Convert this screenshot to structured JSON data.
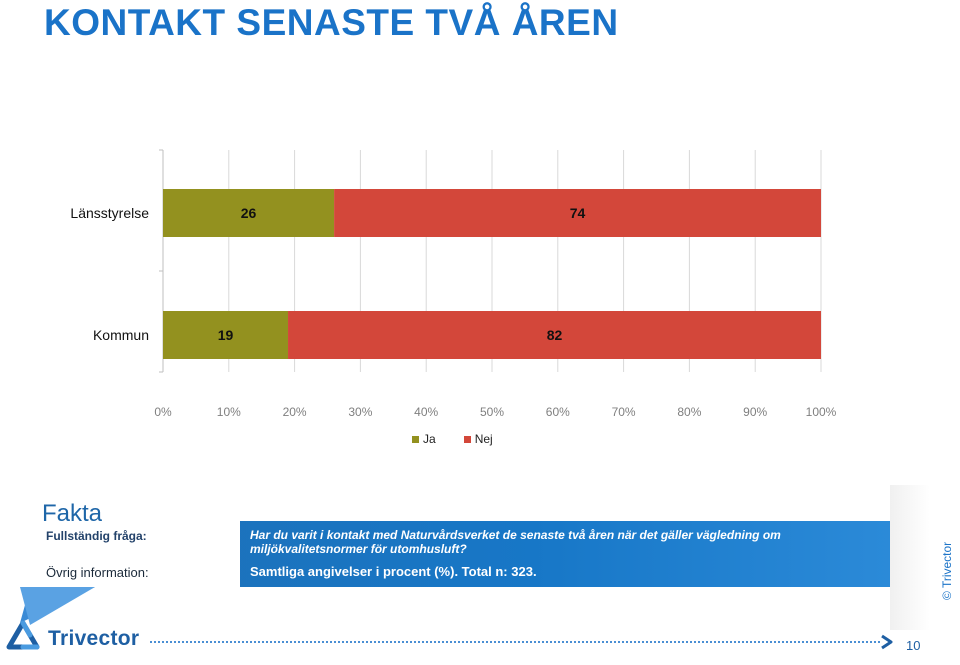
{
  "page": {
    "title": "KONTAKT SENASTE TVÅ ÅREN",
    "page_number": "10",
    "copyright": "© Trivector",
    "logo_text": "Trivector"
  },
  "chart_data": {
    "type": "bar",
    "orientation": "horizontal",
    "stacked": true,
    "categories": [
      "Länsstyrelse",
      "Kommun"
    ],
    "series": [
      {
        "name": "Ja",
        "values": [
          26,
          19
        ],
        "color": "#93911f"
      },
      {
        "name": "Nej",
        "values": [
          74,
          82
        ],
        "color": "#d3473a"
      }
    ],
    "x_ticks": [
      "0%",
      "10%",
      "20%",
      "30%",
      "40%",
      "50%",
      "60%",
      "70%",
      "80%",
      "90%",
      "100%"
    ],
    "xlim": [
      0,
      100
    ],
    "grid": true,
    "legend_placement": "bottom"
  },
  "fakta": {
    "heading": "Fakta",
    "question_label": "Fullständig fråga:",
    "question_text": "Har du varit i kontakt med Naturvårdsverket de senaste två åren när det gäller vägledning om miljökvalitetsnormer för utomhusluft?",
    "other_label": "Övrig information:",
    "other_text": "Samtliga angivelser i procent (%). Total n: 323."
  },
  "colors": {
    "accent": "#1a73c8",
    "ja": "#93911f",
    "nej": "#d3473a"
  }
}
